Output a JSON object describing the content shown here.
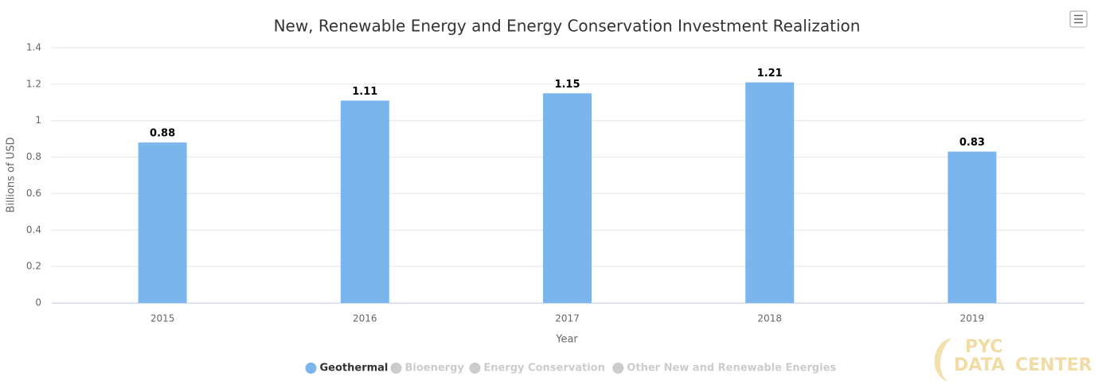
{
  "chart_data": {
    "type": "bar",
    "title": "New, Renewable Energy and Energy Conservation Investment Realization",
    "x_label": "Year",
    "y_label": "Billions of USD",
    "categories": [
      "2015",
      "2016",
      "2017",
      "2018",
      "2019"
    ],
    "series": [
      {
        "name": "Geothermal",
        "color": "#7cb5ec",
        "visible": true,
        "values": [
          0.88,
          1.11,
          1.15,
          1.21,
          0.83
        ]
      },
      {
        "name": "Bioenergy",
        "visible": false,
        "values": [
          null,
          null,
          null,
          null,
          null
        ]
      },
      {
        "name": "Energy Conservation",
        "visible": false,
        "values": [
          null,
          null,
          null,
          null,
          null
        ]
      },
      {
        "name": "Other New and Renewable Energies",
        "visible": false,
        "values": [
          null,
          null,
          null,
          null,
          null
        ]
      }
    ],
    "ylim": [
      0,
      1.4
    ],
    "yticks": [
      0,
      0.2,
      0.4,
      0.6,
      0.8,
      1,
      1.2,
      1.4
    ],
    "grid": true,
    "legend": "bottom",
    "watermark": [
      "PYC",
      "DATA",
      "CENTER"
    ]
  }
}
